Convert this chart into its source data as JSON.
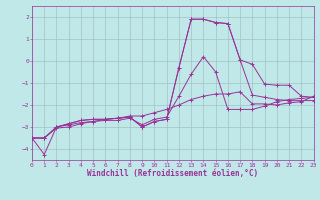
{
  "background_color": "#c0e8e8",
  "grid_color": "#99bbbb",
  "line_color": "#993399",
  "xlim": [
    0,
    23
  ],
  "ylim": [
    -4.5,
    2.5
  ],
  "yticks": [
    -4,
    -3,
    -2,
    -1,
    0,
    1,
    2
  ],
  "xticks": [
    0,
    1,
    2,
    3,
    4,
    5,
    6,
    7,
    8,
    9,
    10,
    11,
    12,
    13,
    14,
    15,
    16,
    17,
    18,
    19,
    20,
    21,
    22,
    23
  ],
  "xlabel": "Windchill (Refroidissement éolien,°C)",
  "series": [
    {
      "x": [
        0,
        1,
        2,
        3,
        4,
        5,
        6,
        7,
        8,
        9,
        10,
        11,
        12,
        13,
        14,
        15,
        16,
        17,
        18,
        19,
        20,
        21,
        22,
        23
      ],
      "y": [
        -3.5,
        -3.5,
        -3.0,
        -2.85,
        -2.7,
        -2.65,
        -2.65,
        -2.6,
        -2.55,
        -3.0,
        -2.75,
        -2.65,
        -0.3,
        1.9,
        1.9,
        1.75,
        1.7,
        0.05,
        -0.15,
        -1.05,
        -1.1,
        -1.1,
        -1.6,
        -1.65
      ]
    },
    {
      "x": [
        0,
        1,
        2,
        3,
        4,
        5,
        6,
        7,
        8,
        9,
        10,
        11,
        12,
        13,
        14,
        15,
        16,
        17,
        18,
        19,
        20,
        21,
        22,
        23
      ],
      "y": [
        -3.5,
        -3.5,
        -3.0,
        -2.85,
        -2.7,
        -2.65,
        -2.65,
        -2.6,
        -2.55,
        -3.0,
        -2.75,
        -2.65,
        -0.3,
        1.9,
        1.9,
        1.75,
        1.7,
        0.05,
        -1.55,
        -1.65,
        -1.75,
        -1.8,
        -1.8,
        -1.8
      ]
    },
    {
      "x": [
        0,
        1,
        2,
        3,
        4,
        5,
        6,
        7,
        8,
        9,
        10,
        11,
        12,
        13,
        14,
        15,
        16,
        17,
        18,
        19,
        20,
        21,
        22,
        23
      ],
      "y": [
        -3.5,
        -4.25,
        -3.0,
        -2.9,
        -2.8,
        -2.75,
        -2.7,
        -2.7,
        -2.6,
        -2.9,
        -2.65,
        -2.55,
        -1.6,
        -0.6,
        0.2,
        -0.5,
        -2.2,
        -2.2,
        -2.2,
        -2.05,
        -1.85,
        -1.75,
        -1.7,
        -1.65
      ]
    },
    {
      "x": [
        0,
        1,
        2,
        3,
        4,
        5,
        6,
        7,
        8,
        9,
        10,
        11,
        12,
        13,
        14,
        15,
        16,
        17,
        18,
        19,
        20,
        21,
        22,
        23
      ],
      "y": [
        -3.5,
        -3.5,
        -3.05,
        -3.0,
        -2.85,
        -2.75,
        -2.65,
        -2.6,
        -2.5,
        -2.5,
        -2.35,
        -2.2,
        -2.0,
        -1.75,
        -1.6,
        -1.5,
        -1.5,
        -1.4,
        -1.95,
        -1.95,
        -2.0,
        -1.9,
        -1.85,
        -1.6
      ]
    }
  ]
}
